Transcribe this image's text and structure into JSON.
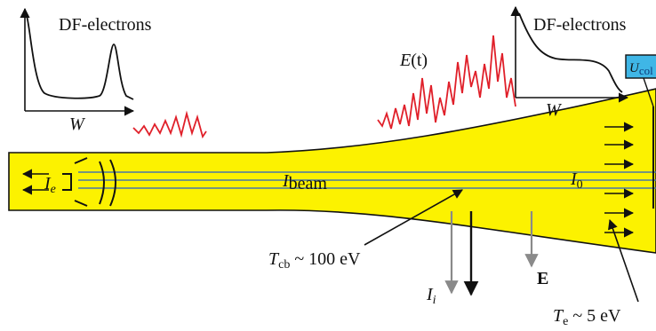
{
  "left_inset": {
    "title": "DF-electrons",
    "axis": "W"
  },
  "right_inset": {
    "title": "DF-electrons",
    "axis": "W",
    "box_label": "U",
    "box_sub": "col"
  },
  "field_label": {
    "main": "E",
    "arg": "(t)"
  },
  "beam_current": {
    "main": "I",
    "sub": "beam"
  },
  "collector_current": {
    "main": "I",
    "sub": "0"
  },
  "electron_current": {
    "main": "I",
    "sub": "e"
  },
  "cold_temp": {
    "main": "T",
    "sub": "cb",
    "rest": " ~ 100 eV"
  },
  "hot_temp": {
    "main": "T",
    "sub": "e",
    "rest": " ~ 5 eV"
  },
  "ion_current": {
    "main": "I",
    "sub": "i"
  },
  "efield_vector": "E",
  "colors": {
    "plasma": "#fcf200",
    "beam": "#4a78a8",
    "wave": "#e0202a",
    "box": "#3fb6e6"
  }
}
